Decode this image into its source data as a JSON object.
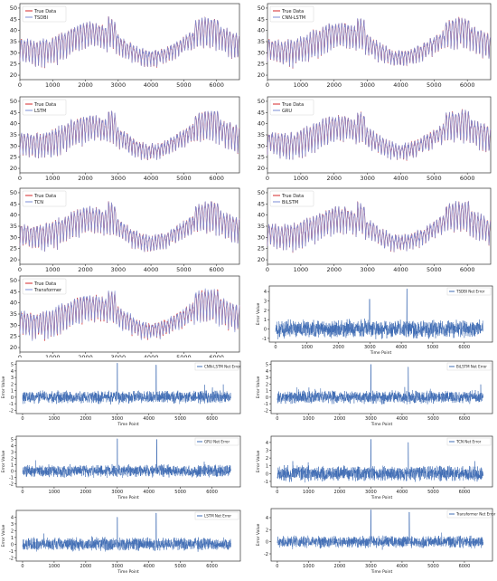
{
  "colors": {
    "true_data": "#d62728",
    "prediction": "#7b8ed6",
    "error": "#3f6cb4",
    "frame": "#333333"
  },
  "chart_data": [
    {
      "id": "tsdbi",
      "type": "line",
      "series": [
        {
          "name": "True Data"
        },
        {
          "name": "TSDBI"
        }
      ],
      "xlim": [
        0,
        6700
      ],
      "ylim": [
        18,
        52
      ],
      "x_ticks": [
        "0",
        "1000",
        "2000",
        "3000",
        "4000",
        "5000",
        "6000",
        "7000"
      ],
      "y_ticks": [
        "20",
        "25",
        "30",
        "35",
        "40",
        "45",
        "50"
      ],
      "legend": "top-left"
    },
    {
      "id": "cnn-lstm",
      "type": "line",
      "series": [
        {
          "name": "True Data"
        },
        {
          "name": "CNN-LSTM"
        }
      ],
      "xlim": [
        0,
        6700
      ],
      "ylim": [
        18,
        52
      ],
      "x_ticks": [
        "0",
        "1000",
        "2000",
        "3000",
        "4000",
        "5000",
        "6000"
      ],
      "y_ticks": [
        "20",
        "25",
        "30",
        "35",
        "40",
        "45",
        "50"
      ],
      "legend": "top-left"
    },
    {
      "id": "lstm",
      "type": "line",
      "series": [
        {
          "name": "True Data"
        },
        {
          "name": "LSTM"
        }
      ],
      "xlim": [
        0,
        6700
      ],
      "ylim": [
        18,
        52
      ],
      "x_ticks": [
        "0",
        "1000",
        "2000",
        "3000",
        "4000",
        "5000",
        "6000",
        "7000"
      ],
      "y_ticks": [
        "20",
        "25",
        "30",
        "35",
        "40",
        "45",
        "50"
      ],
      "legend": "top-left"
    },
    {
      "id": "gru",
      "type": "line",
      "series": [
        {
          "name": "True Data"
        },
        {
          "name": "GRU"
        }
      ],
      "xlim": [
        0,
        6700
      ],
      "ylim": [
        18,
        52
      ],
      "x_ticks": [
        "0",
        "1000",
        "2000",
        "3000",
        "4000",
        "5000",
        "6000"
      ],
      "y_ticks": [
        "20",
        "25",
        "30",
        "35",
        "40",
        "45",
        "50"
      ],
      "legend": "top-left"
    },
    {
      "id": "tcn",
      "type": "line",
      "series": [
        {
          "name": "True Data"
        },
        {
          "name": "TCN"
        }
      ],
      "xlim": [
        0,
        6700
      ],
      "ylim": [
        18,
        52
      ],
      "x_ticks": [
        "0",
        "1000",
        "2000",
        "3000",
        "4000",
        "5000",
        "6000",
        "7000"
      ],
      "y_ticks": [
        "20",
        "25",
        "30",
        "35",
        "40",
        "45",
        "50"
      ],
      "legend": "top-left"
    },
    {
      "id": "bilstm",
      "type": "line",
      "series": [
        {
          "name": "True Data"
        },
        {
          "name": "BiLSTM"
        }
      ],
      "xlim": [
        0,
        6700
      ],
      "ylim": [
        18,
        52
      ],
      "x_ticks": [
        "0",
        "1000",
        "2000",
        "3000",
        "4000",
        "5000",
        "6000"
      ],
      "y_ticks": [
        "20",
        "25",
        "30",
        "35",
        "40",
        "45",
        "50"
      ],
      "legend": "top-left"
    },
    {
      "id": "transformer",
      "type": "line",
      "series": [
        {
          "name": "True Data"
        },
        {
          "name": "Transformer"
        }
      ],
      "xlim": [
        0,
        6700
      ],
      "ylim": [
        18,
        52
      ],
      "x_ticks": [
        "0",
        "1000",
        "2000",
        "3000",
        "4000",
        "5000",
        "6000",
        "7000"
      ],
      "y_ticks": [
        "20",
        "25",
        "30",
        "35",
        "40",
        "45",
        "50"
      ],
      "legend": "top-left"
    },
    {
      "id": "tsdbi-err",
      "type": "line",
      "series": [
        {
          "name": "TSDBI Net Error"
        }
      ],
      "xlabel": "Time Point",
      "ylabel": "Error Value",
      "xlim": [
        -200,
        6900
      ],
      "ylim": [
        -1.4,
        4.6
      ],
      "x_ticks": [
        "0",
        "1000",
        "2000",
        "3000",
        "4000",
        "5000",
        "6000"
      ],
      "y_ticks": [
        "-1",
        "0",
        "1",
        "2",
        "3",
        "4"
      ],
      "legend": "top-right"
    },
    {
      "id": "cnn-lstm-err",
      "type": "line",
      "series": [
        {
          "name": "CNN-LSTM Net Error"
        }
      ],
      "xlabel": "Time Point",
      "ylabel": "Error Value",
      "xlim": [
        -200,
        6900
      ],
      "ylim": [
        -2.5,
        5.5
      ],
      "x_ticks": [
        "0",
        "1000",
        "2000",
        "3000",
        "4000",
        "5000",
        "6000"
      ],
      "y_ticks": [
        "-2",
        "-1",
        "0",
        "1",
        "2",
        "3",
        "4",
        "5"
      ],
      "legend": "top-right"
    },
    {
      "id": "bilstm-err",
      "type": "line",
      "series": [
        {
          "name": "BiLSTM Net Error"
        }
      ],
      "xlabel": "Time Point",
      "ylabel": "Error Value",
      "xlim": [
        -200,
        6900
      ],
      "ylim": [
        -2.5,
        5.5
      ],
      "x_ticks": [
        "0",
        "1000",
        "2000",
        "3000",
        "4000",
        "5000",
        "6000"
      ],
      "y_ticks": [
        "-2",
        "-1",
        "0",
        "1",
        "2",
        "3",
        "4",
        "5"
      ],
      "legend": "top-right"
    },
    {
      "id": "gru-err",
      "type": "line",
      "series": [
        {
          "name": "GRU Net Error"
        }
      ],
      "xlabel": "Time Point",
      "ylabel": "Error Value",
      "xlim": [
        -200,
        6900
      ],
      "ylim": [
        -2.5,
        5.5
      ],
      "x_ticks": [
        "0",
        "1000",
        "2000",
        "3000",
        "4000",
        "5000",
        "6000"
      ],
      "y_ticks": [
        "-2",
        "-1",
        "0",
        "1",
        "2",
        "3",
        "4",
        "5"
      ],
      "legend": "top-right"
    },
    {
      "id": "tcn-err",
      "type": "line",
      "series": [
        {
          "name": "TCN Net Error"
        }
      ],
      "xlabel": "Time Point",
      "ylabel": "Error Value",
      "xlim": [
        -200,
        6900
      ],
      "ylim": [
        -1.7,
        4.8
      ],
      "x_ticks": [
        "0",
        "1000",
        "2000",
        "3000",
        "4000",
        "5000",
        "6000"
      ],
      "y_ticks": [
        "-1",
        "0",
        "1",
        "2",
        "3",
        "4"
      ],
      "legend": "top-right"
    },
    {
      "id": "lstm-err",
      "type": "line",
      "series": [
        {
          "name": "LSTM Net Error"
        }
      ],
      "xlabel": "Time Point",
      "ylabel": "Error Value",
      "xlim": [
        -200,
        6900
      ],
      "ylim": [
        -2.5,
        5.0
      ],
      "x_ticks": [
        "0",
        "1000",
        "2000",
        "3000",
        "4000",
        "5000",
        "6000"
      ],
      "y_ticks": [
        "-2",
        "-1",
        "0",
        "1",
        "2",
        "3",
        "4"
      ],
      "legend": "top-right"
    },
    {
      "id": "transformer-err",
      "type": "line",
      "series": [
        {
          "name": "Transformer Net Error"
        }
      ],
      "xlabel": "Time Point",
      "ylabel": "Error Value",
      "xlim": [
        -200,
        6900
      ],
      "ylim": [
        -3.2,
        5.5
      ],
      "x_ticks": [
        "0",
        "1000",
        "2000",
        "3000",
        "4000",
        "5000",
        "6000"
      ],
      "y_ticks": [
        "-2",
        "0",
        "2",
        "4"
      ],
      "legend": "top-right"
    }
  ]
}
